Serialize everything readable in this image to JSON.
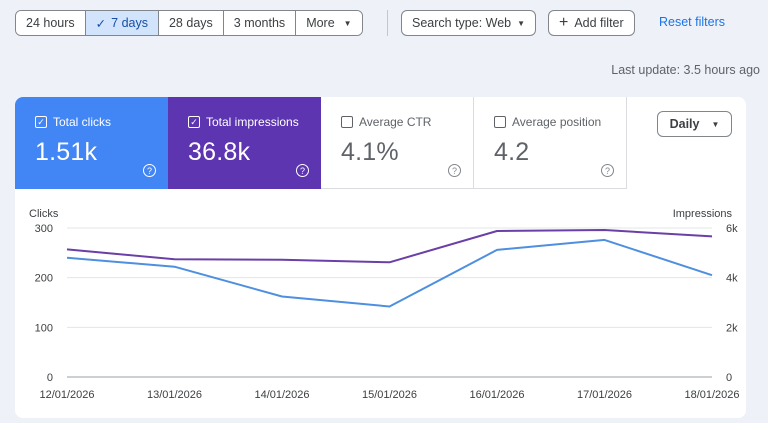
{
  "filters": {
    "ranges": [
      {
        "label": "24 hours",
        "active": false
      },
      {
        "label": "7 days",
        "active": true
      },
      {
        "label": "28 days",
        "active": false
      },
      {
        "label": "3 months",
        "active": false
      },
      {
        "label": "More",
        "active": false
      }
    ],
    "search_type": "Search type: Web",
    "add_filter": "Add filter",
    "reset": "Reset filters"
  },
  "last_update": "Last update: 3.5 hours ago",
  "metrics": {
    "clicks": {
      "label": "Total clicks",
      "value": "1.51k",
      "checked": true,
      "color": "#4285f4"
    },
    "impressions": {
      "label": "Total impressions",
      "value": "36.8k",
      "checked": true,
      "color": "#5e35b1"
    },
    "ctr": {
      "label": "Average CTR",
      "value": "4.1%",
      "checked": false
    },
    "position": {
      "label": "Average position",
      "value": "4.2",
      "checked": false
    }
  },
  "granularity": "Daily",
  "chart_data": {
    "type": "line",
    "x": [
      "12/01/2026",
      "13/01/2026",
      "14/01/2026",
      "15/01/2026",
      "16/01/2026",
      "17/01/2026",
      "18/01/2026"
    ],
    "y_left_label": "Clicks",
    "y_right_label": "Impressions",
    "y_left_ticks": [
      "0",
      "100",
      "200",
      "300"
    ],
    "y_right_ticks": [
      "0",
      "2k",
      "4k",
      "6k"
    ],
    "y_left_range": [
      0,
      300
    ],
    "y_right_range": [
      0,
      6000
    ],
    "series": [
      {
        "name": "Total clicks",
        "axis": "left",
        "color": "#4e8fe0",
        "values": [
          240,
          222,
          162,
          142,
          256,
          276,
          205
        ]
      },
      {
        "name": "Total impressions",
        "axis": "right",
        "color": "#6a3fa6",
        "values": [
          5140,
          4740,
          4720,
          4620,
          5880,
          5920,
          5660
        ]
      }
    ],
    "grid": true
  }
}
